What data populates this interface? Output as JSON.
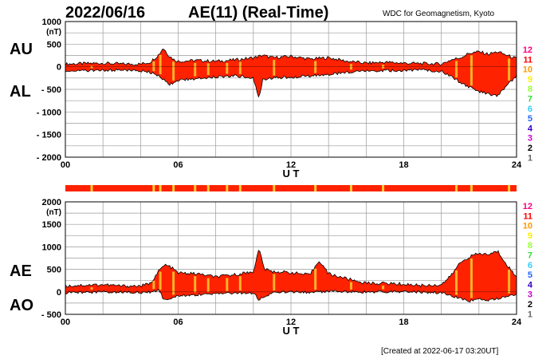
{
  "header": {
    "date": "2022/06/16",
    "title": "AE(11) (Real-Time)",
    "source": "WDC for Geomagnetism, Kyoto"
  },
  "footer": {
    "created": "[Created at 2022-06-17 03:20UT]"
  },
  "colors": {
    "fill": "#ff2200",
    "stripe_bg": "#ff2200",
    "stripe_marks": "#ffcc33",
    "grid": "#9a9a9a",
    "station_counts": [
      "#ff0080",
      "#ff0000",
      "#ff9900",
      "#ffee00",
      "#99ff33",
      "#33dd33",
      "#33ccff",
      "#2266ff",
      "#3300cc",
      "#cc00cc",
      "#000000",
      "#666666",
      "#bbbbbb"
    ]
  },
  "station_counts": [
    "12",
    "11",
    "10",
    "9",
    "8",
    "7",
    "6",
    "5",
    "4",
    "3",
    "2",
    "1"
  ],
  "chart_data": [
    {
      "type": "area",
      "name": "AU/AL",
      "labels_upper": "AU",
      "labels_lower": "AL",
      "unit": "(nT)",
      "xlabel": "U T",
      "xlim": [
        0,
        24
      ],
      "ylim": [
        -2000,
        1000
      ],
      "x_ticks": [
        "00",
        "06",
        "12",
        "18",
        "24"
      ],
      "y_ticks": [
        "1000",
        "500",
        "0",
        "- 500",
        "- 1000",
        "- 1500",
        "- 2000"
      ],
      "y_tick_values": [
        1000,
        500,
        0,
        -500,
        -1000,
        -1500,
        -2000
      ],
      "series": [
        {
          "name": "AU",
          "x": [
            0,
            1,
            2,
            3,
            4,
            4.5,
            5,
            5.2,
            5.5,
            5.8,
            6,
            7,
            8,
            9,
            10,
            10.5,
            11,
            12,
            13,
            14,
            15,
            16,
            17,
            18,
            19,
            20,
            20.5,
            21,
            21.5,
            22,
            22.5,
            23,
            23.5,
            24
          ],
          "values": [
            60,
            70,
            80,
            60,
            60,
            100,
            280,
            420,
            250,
            150,
            120,
            140,
            120,
            150,
            200,
            250,
            200,
            230,
            170,
            200,
            120,
            80,
            100,
            80,
            70,
            60,
            150,
            200,
            300,
            330,
            280,
            330,
            250,
            180
          ]
        },
        {
          "name": "AL",
          "x": [
            0,
            1,
            2,
            3,
            4,
            4.5,
            5,
            5.2,
            5.5,
            5.8,
            6,
            7,
            8,
            9,
            10,
            10.3,
            10.5,
            11,
            12,
            13,
            14,
            15,
            16,
            17,
            18,
            19,
            20,
            20.5,
            21,
            21.5,
            22,
            22.5,
            23,
            23.5,
            24
          ],
          "values": [
            -80,
            -90,
            -80,
            -70,
            -90,
            -120,
            -200,
            -280,
            -400,
            -350,
            -300,
            -260,
            -220,
            -200,
            -250,
            -680,
            -280,
            -250,
            -230,
            -200,
            -170,
            -120,
            -90,
            -90,
            -80,
            -70,
            -100,
            -200,
            -350,
            -450,
            -550,
            -600,
            -650,
            -400,
            -200
          ]
        }
      ]
    },
    {
      "type": "area",
      "name": "AE/AO",
      "labels_upper": "AE",
      "labels_lower": "AO",
      "unit": "(nT)",
      "xlabel": "U T",
      "xlim": [
        0,
        24
      ],
      "ylim": [
        -500,
        2000
      ],
      "x_ticks": [
        "00",
        "06",
        "12",
        "18",
        "24"
      ],
      "y_ticks": [
        "2000",
        "1500",
        "1000",
        "500",
        "0",
        "- 500"
      ],
      "y_tick_values": [
        2000,
        1500,
        1000,
        500,
        0,
        -500
      ],
      "series": [
        {
          "name": "AE",
          "x": [
            0,
            1,
            2,
            3,
            4,
            4.5,
            5,
            5.3,
            5.6,
            6,
            7,
            8,
            9,
            10,
            10.3,
            10.6,
            11,
            12,
            13,
            13.5,
            14,
            15,
            16,
            17,
            18,
            19,
            20,
            20.5,
            21,
            21.5,
            22,
            22.5,
            23,
            23.5,
            24
          ],
          "values": [
            130,
            150,
            160,
            130,
            130,
            180,
            480,
            600,
            550,
            420,
            400,
            330,
            380,
            450,
            950,
            500,
            450,
            430,
            370,
            700,
            400,
            290,
            190,
            190,
            170,
            140,
            160,
            350,
            650,
            780,
            850,
            830,
            900,
            600,
            320
          ]
        },
        {
          "name": "AO",
          "x": [
            0,
            1,
            2,
            3,
            4,
            4.5,
            5,
            5.2,
            5.5,
            6,
            7,
            8,
            9,
            10,
            10.3,
            10.6,
            11,
            12,
            13,
            14,
            15,
            16,
            17,
            18,
            19,
            20,
            21,
            21.5,
            22,
            22.5,
            23,
            23.5,
            24
          ],
          "values": [
            -20,
            -10,
            0,
            -5,
            -15,
            -10,
            40,
            -150,
            -150,
            -90,
            -60,
            -50,
            -25,
            -25,
            -180,
            -100,
            -25,
            0,
            -15,
            10,
            0,
            -5,
            5,
            0,
            -5,
            -15,
            -150,
            -200,
            -150,
            -180,
            -150,
            -100,
            -40
          ]
        }
      ]
    }
  ],
  "lower_stripe": {
    "note": "station-count color bar",
    "marks": [
      1.4,
      4.7,
      5.05,
      5.75,
      6.9,
      7.6,
      8.6,
      9.3,
      11.1,
      13.3,
      15.2,
      16.9,
      20.8,
      21.6,
      23.6
    ]
  }
}
